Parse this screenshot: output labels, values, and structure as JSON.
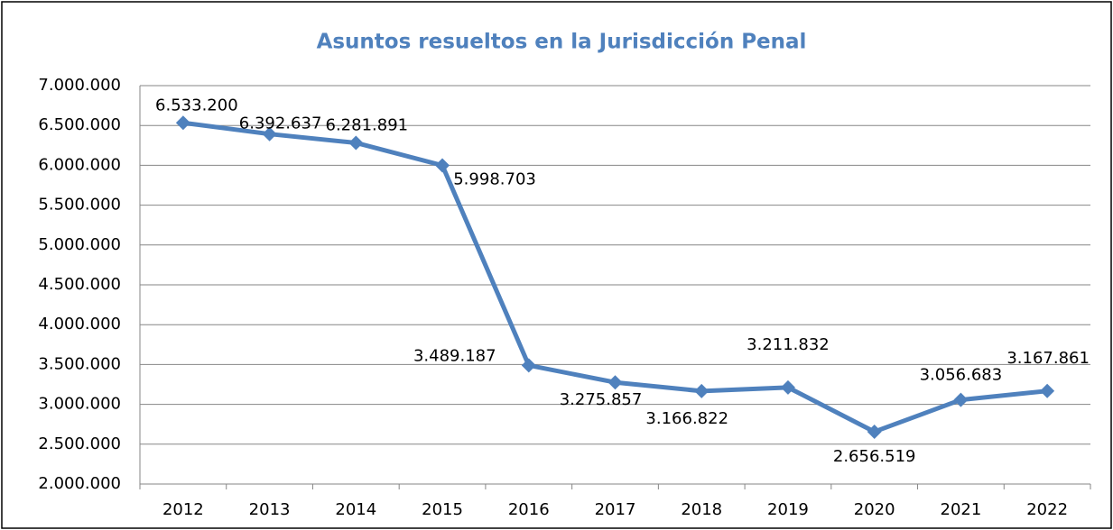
{
  "chart_data": {
    "type": "line",
    "title": "Asuntos resueltos en la Jurisdicción Penal",
    "categories": [
      "2012",
      "2013",
      "2014",
      "2015",
      "2016",
      "2017",
      "2018",
      "2019",
      "2020",
      "2021",
      "2022"
    ],
    "series": [
      {
        "name": "Asuntos resueltos",
        "color": "#4f81bd",
        "values": [
          6533200,
          6392637,
          6281891,
          5998703,
          3489187,
          3275857,
          3166822,
          3211832,
          2656519,
          3056683,
          3167861
        ],
        "value_labels": [
          "6.533.200",
          "6.392.637",
          "6.281.891",
          "5.998.703",
          "3.489.187",
          "3.275.857",
          "3.166.822",
          "3.211.832",
          "2.656.519",
          "3.056.683",
          "3.167.861"
        ]
      }
    ],
    "ylim": [
      2000000,
      7000000
    ],
    "yticks": [
      {
        "value": 2000000,
        "label": "2.000.000"
      },
      {
        "value": 2500000,
        "label": "2.500.000"
      },
      {
        "value": 3000000,
        "label": "3.000.000"
      },
      {
        "value": 3500000,
        "label": "3.500.000"
      },
      {
        "value": 4000000,
        "label": "4.000.000"
      },
      {
        "value": 4500000,
        "label": "4.500.000"
      },
      {
        "value": 5000000,
        "label": "5.000.000"
      },
      {
        "value": 5500000,
        "label": "5.500.000"
      },
      {
        "value": 6000000,
        "label": "6.000.000"
      },
      {
        "value": 6500000,
        "label": "6.500.000"
      },
      {
        "value": 7000000,
        "label": "7.000.000"
      }
    ],
    "grid": true
  }
}
